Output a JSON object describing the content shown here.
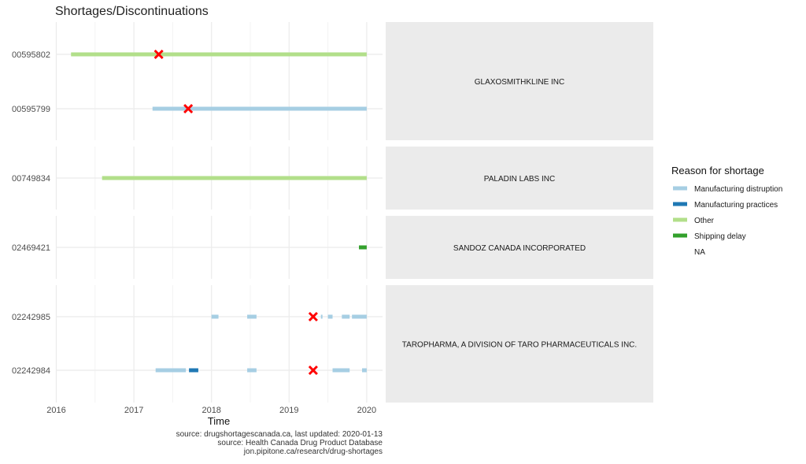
{
  "chart_data": {
    "type": "timeline",
    "title": "Shortages/Discontinuations",
    "xlabel": "Time",
    "xlim": [
      2016,
      2020.15
    ],
    "x_ticks": [
      "2016",
      "2017",
      "2018",
      "2019",
      "2020"
    ],
    "grid": true,
    "caption": [
      "source: drugshortagescanada.ca, last updated: 2020-01-13",
      "source: Health Canada Drug Product Database",
      "jon.pipitone.ca/research/drug-shortages"
    ],
    "legend": {
      "title": "Reason for shortage",
      "placement": "right",
      "entries": [
        {
          "label": "Manufacturing distruption",
          "color": "#a6cee3"
        },
        {
          "label": "Manufacturing practices",
          "color": "#1f78b4"
        },
        {
          "label": "Other",
          "color": "#b2df8a"
        },
        {
          "label": "Shipping delay",
          "color": "#33a02c"
        },
        {
          "label": "NA",
          "color": ""
        }
      ]
    },
    "discontinuation_marker_color": "#ff0000",
    "facets": [
      {
        "company": "GLAXOSMITHKLINE INC",
        "rows": [
          {
            "din": "00595802",
            "segments": [
              {
                "start": 2016.19,
                "end": 2020.0,
                "reason": "Other"
              }
            ],
            "discontinued": [
              2017.32
            ]
          },
          {
            "din": "00595799",
            "segments": [
              {
                "start": 2017.24,
                "end": 2020.0,
                "reason": "Manufacturing distruption"
              }
            ],
            "discontinued": [
              2017.7
            ]
          }
        ]
      },
      {
        "company": "PALADIN LABS INC",
        "rows": [
          {
            "din": "00749834",
            "segments": [
              {
                "start": 2016.59,
                "end": 2020.0,
                "reason": "Other"
              }
            ],
            "discontinued": []
          }
        ]
      },
      {
        "company": "SANDOZ CANADA INCORPORATED",
        "rows": [
          {
            "din": "02469421",
            "segments": [
              {
                "start": 2019.9,
                "end": 2020.0,
                "reason": "Shipping delay"
              }
            ],
            "discontinued": []
          }
        ]
      },
      {
        "company": "TAROPHARMA, A DIVISION OF TARO PHARMACEUTICALS INC.",
        "rows": [
          {
            "din": "02242985",
            "segments": [
              {
                "start": 2018.0,
                "end": 2018.09,
                "reason": "Manufacturing distruption"
              },
              {
                "start": 2018.46,
                "end": 2018.58,
                "reason": "Manufacturing distruption"
              },
              {
                "start": 2019.41,
                "end": 2019.43,
                "reason": "Manufacturing distruption"
              },
              {
                "start": 2019.5,
                "end": 2019.56,
                "reason": "Manufacturing distruption"
              },
              {
                "start": 2019.68,
                "end": 2019.78,
                "reason": "Manufacturing distruption"
              },
              {
                "start": 2019.81,
                "end": 2020.0,
                "reason": "Manufacturing distruption"
              }
            ],
            "discontinued": [
              2019.31
            ]
          },
          {
            "din": "02242984",
            "segments": [
              {
                "start": 2017.28,
                "end": 2017.67,
                "reason": "Manufacturing distruption"
              },
              {
                "start": 2017.71,
                "end": 2017.83,
                "reason": "Manufacturing practices"
              },
              {
                "start": 2018.46,
                "end": 2018.58,
                "reason": "Manufacturing distruption"
              },
              {
                "start": 2019.56,
                "end": 2019.78,
                "reason": "Manufacturing distruption"
              },
              {
                "start": 2019.94,
                "end": 2020.0,
                "reason": "Manufacturing distruption"
              }
            ],
            "discontinued": [
              2019.31
            ]
          }
        ]
      }
    ]
  }
}
